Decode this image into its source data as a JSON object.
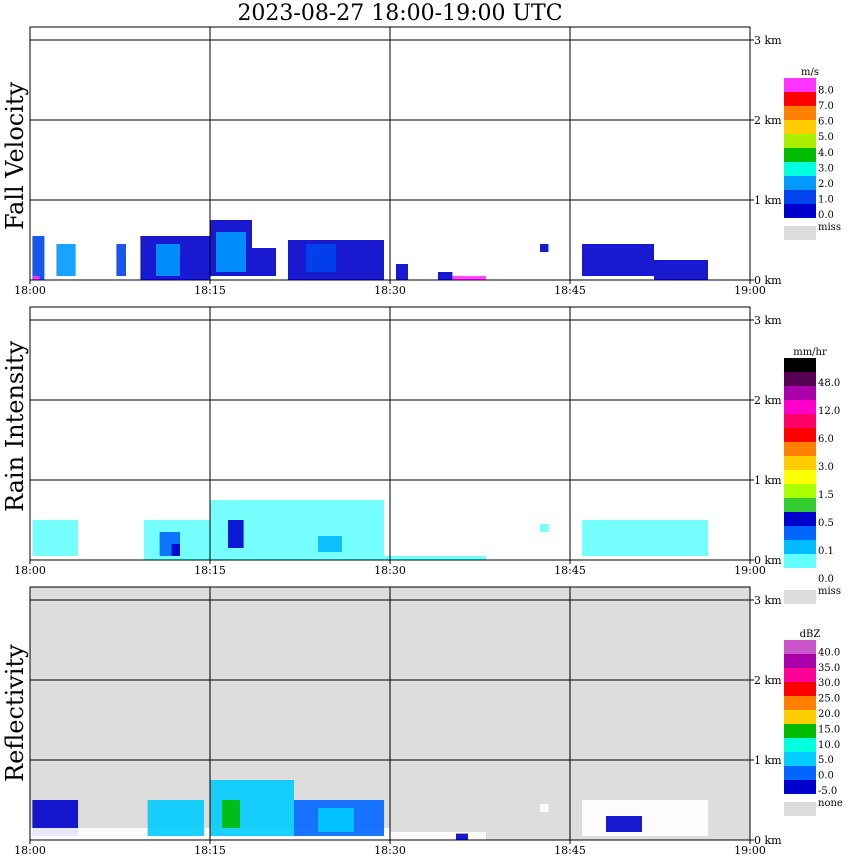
{
  "title": "2023-08-27  18:00-19:00 UTC",
  "chart_data": [
    {
      "type": "heatmap",
      "ylabel": "Fall Velocity",
      "x_ticks": [
        "18:00",
        "18:15",
        "18:30",
        "18:45",
        "19:00"
      ],
      "y_ticks": [
        "0 km",
        "1 km",
        "2 km",
        "3 km"
      ],
      "xlim": [
        "18:00",
        "19:00"
      ],
      "ylim_km": [
        0,
        3.5
      ],
      "grid": true,
      "colorbar": {
        "unit": "m/s",
        "labels": [
          "8.0",
          "7.0",
          "6.0",
          "5.0",
          "4.0",
          "3.0",
          "2.0",
          "1.0",
          "0.0"
        ],
        "colors": [
          "#ff33ff",
          "#ff0000",
          "#ff7f00",
          "#ffcc00",
          "#aaee00",
          "#00bb00",
          "#00ffdd",
          "#0099ff",
          "#0044ee",
          "#0000cc"
        ],
        "miss_label": "miss",
        "miss_color": "#dddddd"
      },
      "blobs": [
        {
          "t0": 0.2,
          "t1": 1.2,
          "h0": 0.0,
          "h1": 0.55,
          "color": "#0044ee"
        },
        {
          "t0": 2.2,
          "t1": 3.8,
          "h0": 0.05,
          "h1": 0.45,
          "color": "#0099ff"
        },
        {
          "t0": 7.2,
          "t1": 8.0,
          "h0": 0.05,
          "h1": 0.45,
          "color": "#0044ee"
        },
        {
          "t0": 9.2,
          "t1": 15.0,
          "h0": 0.0,
          "h1": 0.55,
          "color": "#0000cc"
        },
        {
          "t0": 10.5,
          "t1": 12.5,
          "h0": 0.05,
          "h1": 0.45,
          "color": "#0099ff"
        },
        {
          "t0": 15.0,
          "t1": 18.5,
          "h0": 0.05,
          "h1": 0.75,
          "color": "#0000cc"
        },
        {
          "t0": 15.5,
          "t1": 18.0,
          "h0": 0.1,
          "h1": 0.6,
          "color": "#0099ff"
        },
        {
          "t0": 18.5,
          "t1": 20.5,
          "h0": 0.05,
          "h1": 0.4,
          "color": "#0000cc"
        },
        {
          "t0": 21.5,
          "t1": 29.5,
          "h0": 0.0,
          "h1": 0.5,
          "color": "#0000cc"
        },
        {
          "t0": 23.0,
          "t1": 25.5,
          "h0": 0.1,
          "h1": 0.45,
          "color": "#0044ee"
        },
        {
          "t0": 30.5,
          "t1": 31.5,
          "h0": 0.0,
          "h1": 0.2,
          "color": "#0000cc"
        },
        {
          "t0": 34.0,
          "t1": 35.2,
          "h0": 0.0,
          "h1": 0.1,
          "color": "#0000cc"
        },
        {
          "t0": 35.2,
          "t1": 38.0,
          "h0": 0.0,
          "h1": 0.05,
          "color": "#ff33ff"
        },
        {
          "t0": 42.5,
          "t1": 43.2,
          "h0": 0.35,
          "h1": 0.45,
          "color": "#0000cc"
        },
        {
          "t0": 46.0,
          "t1": 52.0,
          "h0": 0.05,
          "h1": 0.45,
          "color": "#0000cc"
        },
        {
          "t0": 52.0,
          "t1": 56.5,
          "h0": 0.0,
          "h1": 0.25,
          "color": "#0000cc"
        },
        {
          "t0": 0.2,
          "t1": 0.8,
          "h0": 0.0,
          "h1": 0.05,
          "color": "#ff33ff"
        }
      ]
    },
    {
      "type": "heatmap",
      "ylabel": "Rain Intensity",
      "x_ticks": [
        "18:00",
        "18:15",
        "18:30",
        "18:45",
        "19:00"
      ],
      "y_ticks": [
        "0 km",
        "1 km",
        "2 km",
        "3 km"
      ],
      "xlim": [
        "18:00",
        "19:00"
      ],
      "ylim_km": [
        0,
        3.5
      ],
      "grid": true,
      "colorbar": {
        "unit": "mm/hr",
        "labels": [
          "48.0",
          "12.0",
          "6.0",
          "3.0",
          "1.5",
          "0.5",
          "0.1",
          "0.0"
        ],
        "colors": [
          "#000000",
          "#550055",
          "#aa00aa",
          "#ff00cc",
          "#ff0066",
          "#ff0000",
          "#ff7f00",
          "#ffcc00",
          "#ffff00",
          "#aaff00",
          "#33cc33",
          "#0000cc",
          "#0066ff",
          "#00bbff",
          "#66ffff",
          "#ffffff"
        ],
        "miss_label": "miss",
        "miss_color": "#dddddd"
      },
      "blobs": [
        {
          "t0": 0.2,
          "t1": 4.0,
          "h0": 0.05,
          "h1": 0.5,
          "color": "#66ffff"
        },
        {
          "t0": 9.5,
          "t1": 15.0,
          "h0": 0.0,
          "h1": 0.5,
          "color": "#66ffff"
        },
        {
          "t0": 10.8,
          "t1": 12.5,
          "h0": 0.05,
          "h1": 0.35,
          "color": "#0066ff"
        },
        {
          "t0": 11.8,
          "t1": 12.5,
          "h0": 0.05,
          "h1": 0.2,
          "color": "#0000cc"
        },
        {
          "t0": 15.0,
          "t1": 29.5,
          "h0": 0.0,
          "h1": 0.75,
          "color": "#66ffff"
        },
        {
          "t0": 16.5,
          "t1": 17.8,
          "h0": 0.15,
          "h1": 0.5,
          "color": "#0000cc"
        },
        {
          "t0": 24.0,
          "t1": 26.0,
          "h0": 0.1,
          "h1": 0.3,
          "color": "#00bbff"
        },
        {
          "t0": 29.5,
          "t1": 38.0,
          "h0": 0.0,
          "h1": 0.05,
          "color": "#66ffff"
        },
        {
          "t0": 42.5,
          "t1": 43.2,
          "h0": 0.35,
          "h1": 0.45,
          "color": "#66ffff"
        },
        {
          "t0": 46.0,
          "t1": 56.5,
          "h0": 0.05,
          "h1": 0.5,
          "color": "#66ffff"
        }
      ]
    },
    {
      "type": "heatmap",
      "ylabel": "Reflectivity",
      "x_ticks": [
        "18:00",
        "18:15",
        "18:30",
        "18:45",
        "19:00"
      ],
      "y_ticks": [
        "0 km",
        "1 km",
        "2 km",
        "3 km"
      ],
      "xlim": [
        "18:00",
        "19:00"
      ],
      "ylim_km": [
        0,
        3.5
      ],
      "grid": true,
      "background": "#dddddd",
      "colorbar": {
        "unit": "dBZ",
        "labels": [
          "40.0",
          "35.0",
          "30.0",
          "25.0",
          "20.0",
          "15.0",
          "10.0",
          "5.0",
          "0.0",
          "-5.0"
        ],
        "colors": [
          "#cc55cc",
          "#aa00aa",
          "#ff0099",
          "#ff0000",
          "#ff7f00",
          "#ffcc00",
          "#00bb00",
          "#00ffdd",
          "#00ccff",
          "#0066ff",
          "#0000cc"
        ],
        "miss_label": "none",
        "miss_color": "#dddddd"
      },
      "blobs": [
        {
          "t0": 0.2,
          "t1": 4.0,
          "h0": 0.05,
          "h1": 0.5,
          "color": "#0000cc"
        },
        {
          "t0": 0.0,
          "t1": 30.0,
          "h0": 0.0,
          "h1": 0.15,
          "color": "#ffffff"
        },
        {
          "t0": 9.8,
          "t1": 14.5,
          "h0": 0.05,
          "h1": 0.5,
          "color": "#00ccff"
        },
        {
          "t0": 15.0,
          "t1": 22.0,
          "h0": 0.05,
          "h1": 0.75,
          "color": "#00ccff"
        },
        {
          "t0": 16.0,
          "t1": 17.5,
          "h0": 0.15,
          "h1": 0.5,
          "color": "#00bb00"
        },
        {
          "t0": 22.0,
          "t1": 29.5,
          "h0": 0.05,
          "h1": 0.5,
          "color": "#0066ff"
        },
        {
          "t0": 24.0,
          "t1": 27.0,
          "h0": 0.1,
          "h1": 0.4,
          "color": "#00ccff"
        },
        {
          "t0": 29.5,
          "t1": 38.0,
          "h0": 0.0,
          "h1": 0.1,
          "color": "#ffffff"
        },
        {
          "t0": 35.5,
          "t1": 36.5,
          "h0": 0.0,
          "h1": 0.08,
          "color": "#0000cc"
        },
        {
          "t0": 42.5,
          "t1": 43.2,
          "h0": 0.35,
          "h1": 0.45,
          "color": "#ffffff"
        },
        {
          "t0": 46.0,
          "t1": 56.5,
          "h0": 0.05,
          "h1": 0.5,
          "color": "#ffffff"
        },
        {
          "t0": 48.0,
          "t1": 51.0,
          "h0": 0.1,
          "h1": 0.3,
          "color": "#0000cc"
        }
      ]
    }
  ]
}
